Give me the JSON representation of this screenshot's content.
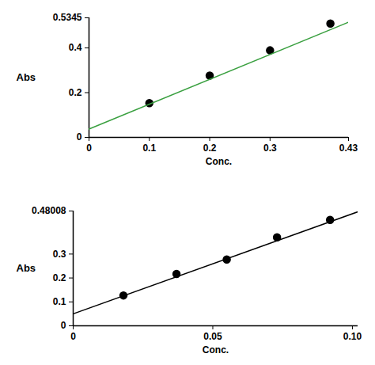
{
  "chart_data": [
    {
      "type": "scatter",
      "x_label": "Conc.",
      "y_label": "Abs",
      "xlim": [
        0,
        0.43
      ],
      "xticks": [
        0,
        0.1,
        0.2,
        0.3,
        0.43
      ],
      "ylim": [
        0,
        0.5345
      ],
      "yticks": [
        0,
        0.2,
        0.4,
        0.5345
      ],
      "series": [
        {
          "type": "scatter",
          "marker": "circle",
          "color": "#000000",
          "x": [
            0.1,
            0.2,
            0.3,
            0.4
          ],
          "values": [
            0.153,
            0.276,
            0.389,
            0.509
          ]
        },
        {
          "type": "line",
          "line_style": "solid",
          "color": "#3aa040",
          "x": [
            0,
            0.43
          ],
          "values": [
            0.037,
            0.515
          ]
        }
      ]
    },
    {
      "type": "scatter",
      "x_label": "Conc.",
      "y_label": "Abs",
      "xlim": [
        0,
        0.102
      ],
      "xticks": [
        0,
        0.05,
        {
          "value": 0.1,
          "label": "0.10"
        }
      ],
      "ylim": [
        0,
        0.48008
      ],
      "yticks": [
        0,
        0.1,
        0.2,
        0.3,
        0.48008
      ],
      "series": [
        {
          "type": "scatter",
          "marker": "circle",
          "color": "#000000",
          "x": [
            0.018,
            0.037,
            0.055,
            0.073,
            0.092
          ],
          "values": [
            0.127,
            0.217,
            0.277,
            0.37,
            0.443
          ]
        },
        {
          "type": "line",
          "line_style": "solid",
          "color": "#000000",
          "x": [
            0,
            0.102
          ],
          "values": [
            0.05,
            0.477
          ]
        }
      ]
    }
  ]
}
